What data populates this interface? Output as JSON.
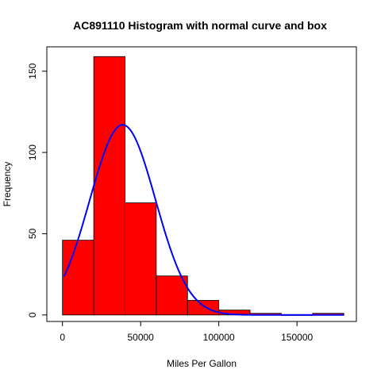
{
  "chart_data": {
    "type": "bar",
    "title": "AC891110 Histogram with normal curve and box",
    "xlabel": "Miles Per Gallon",
    "ylabel": "Frequency",
    "xlim": [
      -10000,
      188000
    ],
    "ylim": [
      -4,
      165
    ],
    "x_ticks": [
      0,
      50000,
      100000,
      150000
    ],
    "x_tick_labels": [
      "0",
      "50000",
      "100000",
      "150000"
    ],
    "y_ticks": [
      0,
      50,
      100,
      150
    ],
    "y_tick_labels": [
      "0",
      "50",
      "100",
      "150"
    ],
    "bins": [
      {
        "x0": 0,
        "x1": 20000,
        "count": 46
      },
      {
        "x0": 20000,
        "x1": 40000,
        "count": 159
      },
      {
        "x0": 40000,
        "x1": 60000,
        "count": 69
      },
      {
        "x0": 60000,
        "x1": 80000,
        "count": 24
      },
      {
        "x0": 80000,
        "x1": 100000,
        "count": 9
      },
      {
        "x0": 100000,
        "x1": 120000,
        "count": 3
      },
      {
        "x0": 120000,
        "x1": 140000,
        "count": 1
      },
      {
        "x0": 140000,
        "x1": 160000,
        "count": 0
      },
      {
        "x0": 160000,
        "x1": 180000,
        "count": 1
      }
    ],
    "bar_color": "#ff0000",
    "bar_border_color": "#000000",
    "normal_curve": {
      "mean": 38500,
      "sd": 21000,
      "peak": 117,
      "x_from": 1000,
      "x_to": 180000,
      "color": "#0000ff"
    },
    "grid": false,
    "legend": "none"
  }
}
